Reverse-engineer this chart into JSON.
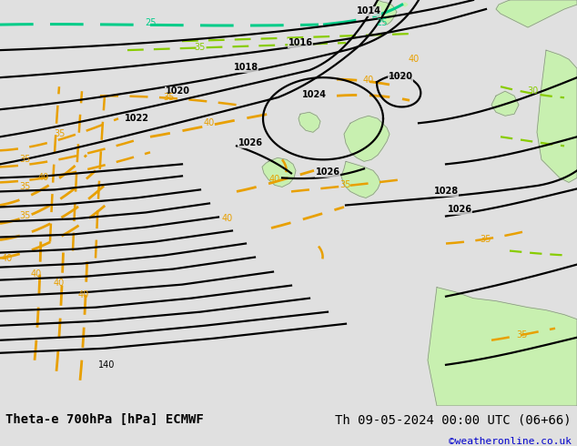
{
  "title_left": "Theta-e 700hPa [hPa] ECMWF",
  "title_right": "Th 09-05-2024 00:00 UTC (06+66)",
  "credit": "©weatheronline.co.uk",
  "bg_color": "#e0e0e0",
  "land_color": "#c8f0b0",
  "coast_color": "#888888",
  "pressure_color": "#000000",
  "theta_orange_color": "#e8a000",
  "theta_green_color": "#00cc88",
  "theta_lgreen_color": "#88cc00",
  "bottom_bar_color": "#ffffff",
  "title_fontsize": 10,
  "credit_color": "#0000cc",
  "figsize": [
    6.34,
    4.9
  ],
  "dpi": 100
}
